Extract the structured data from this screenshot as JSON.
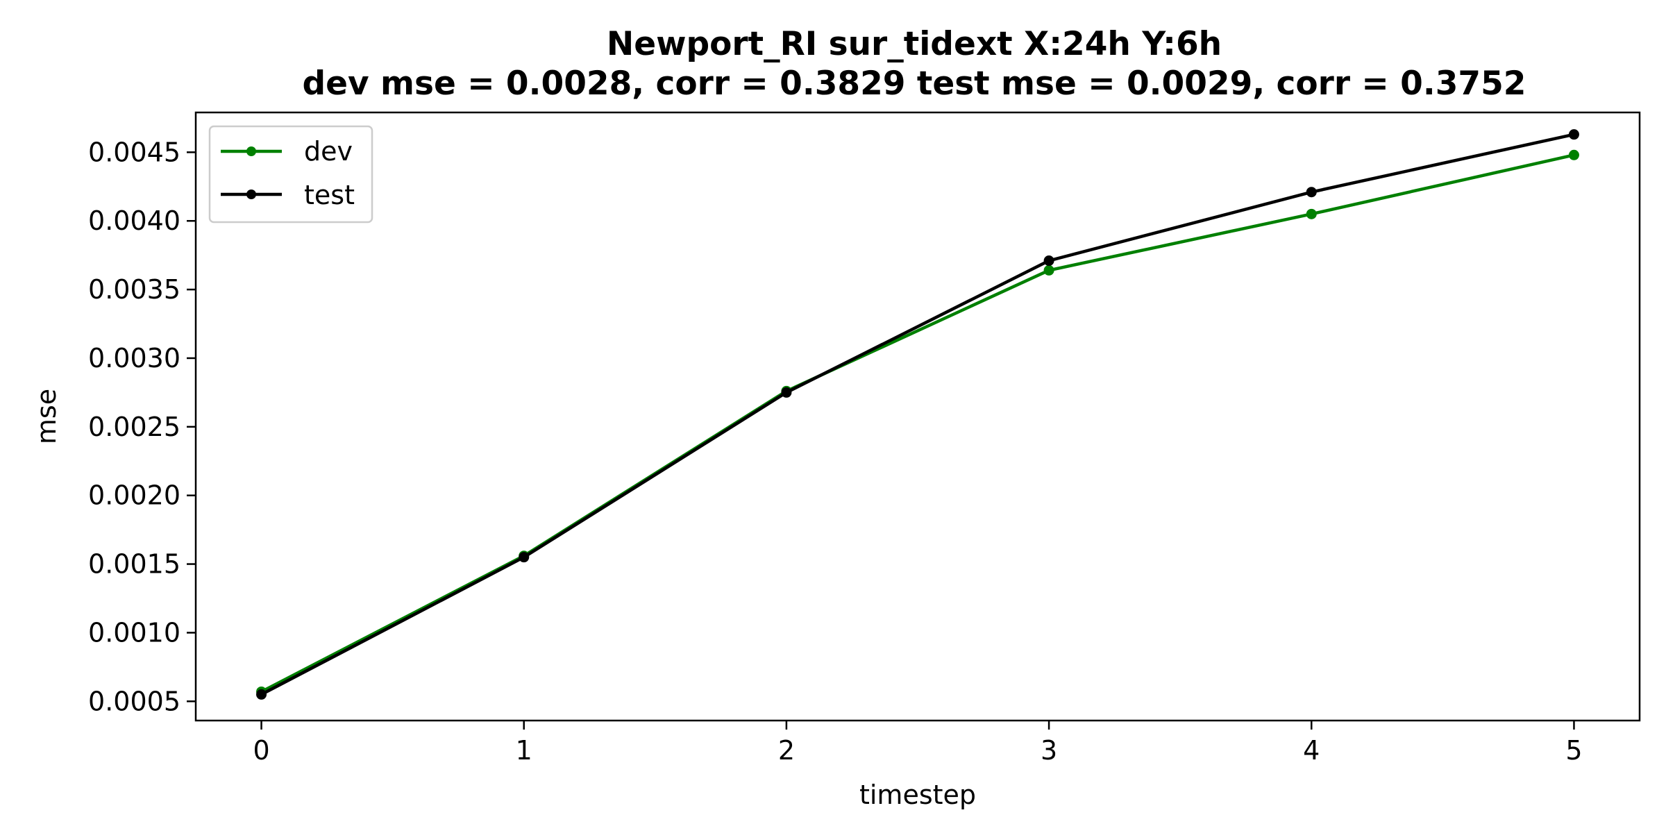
{
  "chart_data": {
    "type": "line",
    "title_lines": [
      "Newport_RI   sur_tidext   X:24h   Y:6h",
      "dev mse = 0.0028, corr = 0.3829   test mse = 0.0029, corr = 0.3752"
    ],
    "xlabel": "timestep",
    "ylabel": "mse",
    "x": [
      0,
      1,
      2,
      3,
      4,
      5
    ],
    "xlim": [
      -0.25,
      5.25
    ],
    "ylim": [
      0.00036,
      0.00479
    ],
    "xticks": [
      "0",
      "1",
      "2",
      "3",
      "4",
      "5"
    ],
    "yticks": [
      "0.0005",
      "0.0010",
      "0.0015",
      "0.0020",
      "0.0025",
      "0.0030",
      "0.0035",
      "0.0040",
      "0.0045"
    ],
    "grid": false,
    "legend_position": "top-left",
    "series": [
      {
        "name": "dev",
        "color": "#008000",
        "values": [
          0.00057,
          0.00156,
          0.00276,
          0.00364,
          0.00405,
          0.00448
        ]
      },
      {
        "name": "test",
        "color": "#000000",
        "values": [
          0.00055,
          0.00155,
          0.00275,
          0.00371,
          0.00421,
          0.00463
        ]
      }
    ]
  }
}
